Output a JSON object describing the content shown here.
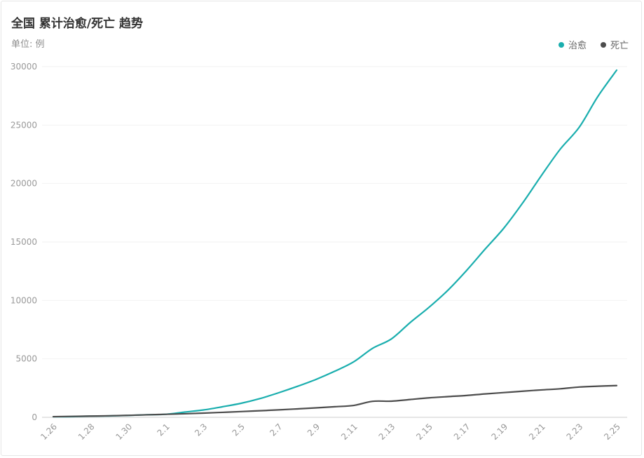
{
  "header": {
    "title": "全国 累计治愈/死亡 趋势",
    "unit": "单位: 例"
  },
  "legend": [
    {
      "label": "治愈",
      "color": "#1AAEAE"
    },
    {
      "label": "死亡",
      "color": "#4D4D4D"
    }
  ],
  "chart_data": {
    "type": "line",
    "title": "全国 累计治愈/死亡 趋势",
    "ylabel": "单位: 例",
    "ylim": [
      0,
      30000
    ],
    "yticks": [
      0,
      5000,
      10000,
      15000,
      20000,
      25000,
      30000
    ],
    "categories": [
      "1.26",
      "1.27",
      "1.28",
      "1.29",
      "1.30",
      "1.31",
      "2.1",
      "2.2",
      "2.3",
      "2.4",
      "2.5",
      "2.6",
      "2.7",
      "2.8",
      "2.9",
      "2.10",
      "2.11",
      "2.12",
      "2.13",
      "2.14",
      "2.15",
      "2.16",
      "2.17",
      "2.18",
      "2.19",
      "2.20",
      "2.21",
      "2.22",
      "2.23",
      "2.24",
      "2.25"
    ],
    "xtick_labels": [
      "1.26",
      "1.28",
      "1.30",
      "2.1",
      "2.3",
      "2.5",
      "2.7",
      "2.9",
      "2.11",
      "2.13",
      "2.15",
      "2.17",
      "2.19",
      "2.21",
      "2.23",
      "2.25"
    ],
    "series": [
      {
        "name": "治愈",
        "color": "#1AAEAE",
        "values": [
          50,
          60,
          100,
          120,
          160,
          220,
          260,
          450,
          630,
          900,
          1200,
          1600,
          2100,
          2650,
          3250,
          3950,
          4750,
          5900,
          6700,
          8100,
          9400,
          10850,
          12550,
          14400,
          16200,
          18350,
          20700,
          22950,
          24800,
          27450,
          29700
        ]
      },
      {
        "name": "死亡",
        "color": "#4D4D4D",
        "values": [
          56,
          80,
          106,
          132,
          170,
          213,
          259,
          304,
          361,
          425,
          490,
          563,
          636,
          722,
          811,
          908,
          1016,
          1368,
          1380,
          1523,
          1665,
          1770,
          1868,
          2004,
          2118,
          2236,
          2345,
          2442,
          2592,
          2663,
          2715
        ]
      }
    ],
    "grid": true,
    "legend_position": "top-right"
  }
}
